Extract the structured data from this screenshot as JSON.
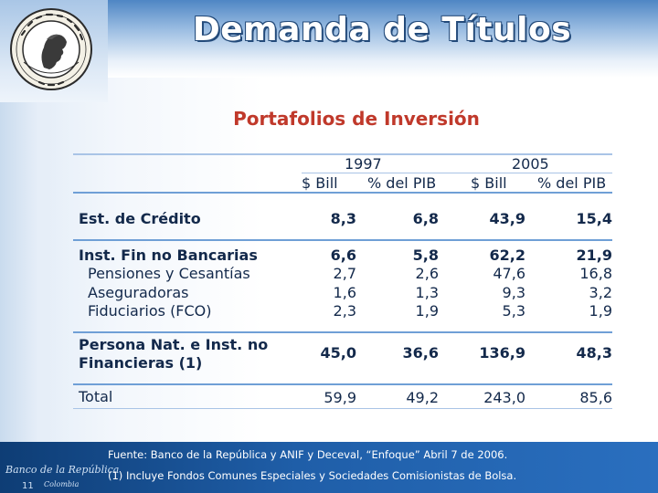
{
  "header": {
    "title": "Demanda de Títulos",
    "logo_text_top": "BANCO DE LA REPUBLICA",
    "logo_text_bottom": "COLOMBIA"
  },
  "subtitle": "Portafolios de Inversión",
  "table": {
    "year_headers": [
      "1997",
      "2005"
    ],
    "column_headers": [
      "$ Bill",
      "% del PIB",
      "$ Bill",
      "% del PIB"
    ],
    "rows": [
      {
        "label": "Est. de Crédito",
        "values": [
          "8,3",
          "6,8",
          "43,9",
          "15,4"
        ]
      },
      {
        "label": "Inst. Fin no Bancarias",
        "values": [
          "6,6",
          "5,8",
          "62,2",
          "21,9"
        ]
      },
      {
        "label": "Pensiones y Cesantías",
        "values": [
          "2,7",
          "2,6",
          "47,6",
          "16,8"
        ]
      },
      {
        "label": "Aseguradoras",
        "values": [
          "1,6",
          "1,3",
          "9,3",
          "3,2"
        ]
      },
      {
        "label": "Fiduciarios  (FCO)",
        "values": [
          "2,3",
          "1,9",
          "5,3",
          "1,9"
        ]
      },
      {
        "label_line1": "Persona Nat. e Inst. no",
        "label_line2": "Financieras (1)",
        "values": [
          "45,0",
          "36,6",
          "136,9",
          "48,3"
        ]
      },
      {
        "label": "Total",
        "values": [
          "59,9",
          "49,2",
          "243,0",
          "85,6"
        ]
      }
    ]
  },
  "footer": {
    "source": "Fuente: Banco de la República y ANIF y Deceval, “Enfoque” Abril 7 de 2006.",
    "note": "(1) Incluye Fondos Comunes Especiales y Sociedades Comisionistas de Bolsa.",
    "brand": "Banco de la República",
    "brand_sub": "Colombia",
    "page_number": "11"
  },
  "colors": {
    "title_outline": "#234a7a",
    "subtitle": "#c0392b",
    "table_text": "#13294b",
    "rule": "#6f9fd6",
    "footer_bg": "#1f5ea8"
  }
}
